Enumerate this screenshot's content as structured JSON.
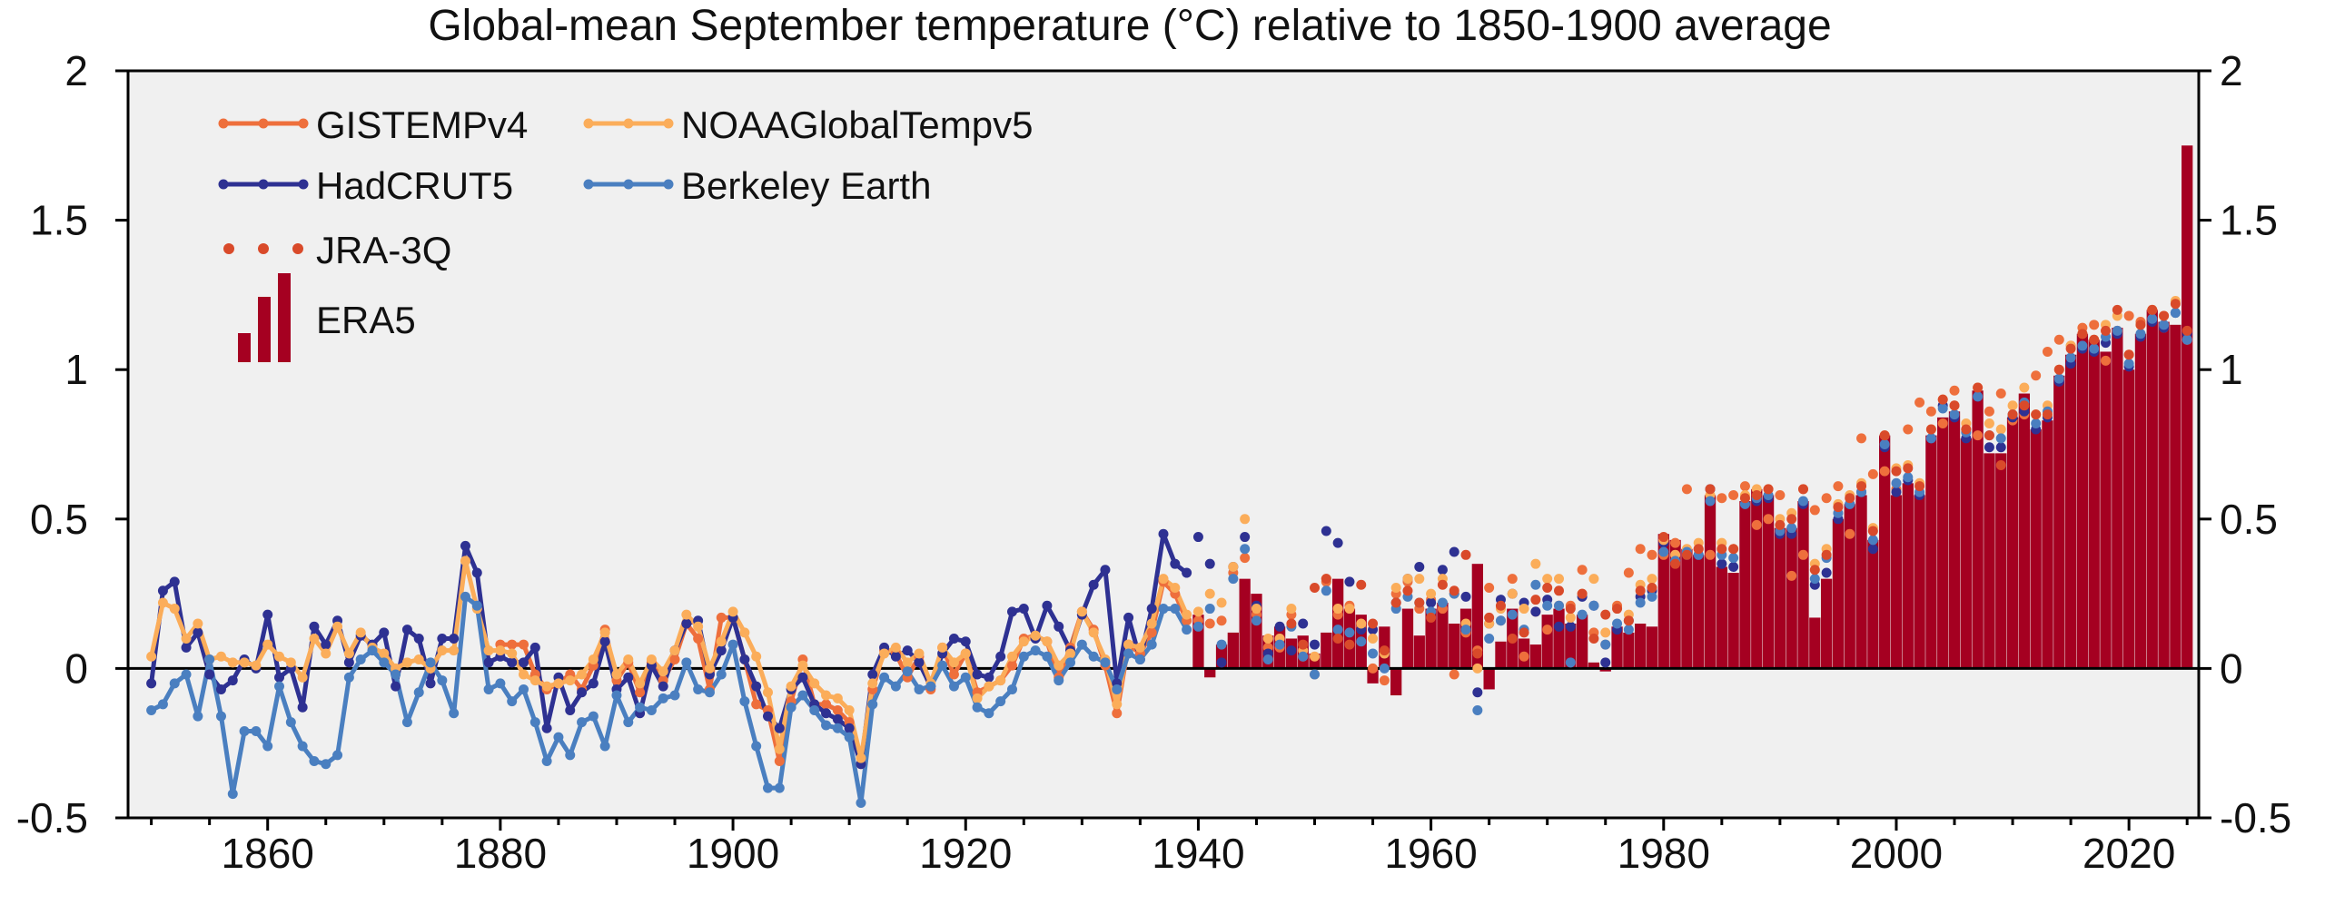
{
  "chart_data": {
    "type": "line",
    "title": "Global-mean September temperature (°C) relative to 1850-1900 average",
    "xlabel": "",
    "ylabel": "",
    "xlim": [
      1848,
      2026
    ],
    "ylim": [
      -0.5,
      2
    ],
    "x_ticks": [
      1860,
      1880,
      1900,
      1920,
      1940,
      1960,
      1980,
      2000,
      2020
    ],
    "y_ticks": [
      -0.5,
      0,
      0.5,
      1,
      1.5,
      2
    ],
    "y_tick_labels": [
      "-0.5",
      "0",
      "0.5",
      "1",
      "1.5",
      "2"
    ],
    "grid": false,
    "legend_position": "top-left",
    "background": "#f0f0f0",
    "series": [
      {
        "name": "GISTEMPv4",
        "style": "line",
        "color": "#ee6f3c",
        "start_year": 1880,
        "values": [
          0.08,
          0.08,
          0.08,
          -0.02,
          -0.07,
          -0.05,
          -0.02,
          -0.07,
          0.01,
          0.13,
          -0.04,
          0.02,
          -0.08,
          0.02,
          -0.04,
          0.03,
          0.15,
          0.1,
          -0.07,
          0.17,
          0.17,
          0.03,
          -0.12,
          -0.14,
          -0.31,
          -0.11,
          0.03,
          -0.12,
          -0.12,
          -0.14,
          -0.18,
          -0.32,
          -0.07,
          0.06,
          0.05,
          -0.03,
          0.04,
          -0.07,
          0.07,
          -0.02,
          0.05,
          -0.08,
          -0.06,
          -0.04,
          0.01,
          0.1,
          0.11,
          0.09,
          -0.03,
          0.07,
          0.19,
          0.13,
          0.01,
          -0.15,
          0.08,
          0.05,
          0.12,
          0.29,
          0.25,
          0.16,
          0.16,
          0.15,
          0.16,
          0.32,
          0.37,
          0.18,
          0.07,
          0.07,
          0.18,
          0.04,
          -0.02,
          0.29,
          0.18,
          0.21,
          0.14,
          0.0,
          -0.04,
          0.25,
          0.29,
          0.2,
          0.23,
          0.2,
          -0.02,
          0.12,
          0.06,
          0.27,
          0.16,
          0.3,
          0.04,
          0.19,
          0.13,
          0.21,
          0.21,
          0.33,
          0.12,
          0.08,
          0.21,
          0.32,
          0.4,
          0.38,
          0.38,
          0.42,
          0.6,
          0.4,
          0.38,
          0.57,
          0.58,
          0.61,
          0.48,
          0.5,
          0.58,
          0.31,
          0.38,
          0.53,
          0.57,
          0.61,
          0.45,
          0.77,
          0.65,
          0.66,
          0.6,
          0.8,
          0.89,
          0.86,
          0.82,
          0.93,
          0.8,
          0.78,
          0.86,
          0.92,
          0.83,
          0.85,
          0.98,
          1.06,
          1.1,
          1.08,
          1.14,
          1.15,
          1.03,
          1.13,
          1.18,
          1.16,
          1.2,
          1.14
        ]
      },
      {
        "name": "HadCRUT5",
        "style": "line",
        "color": "#2e3192",
        "start_year": 1850,
        "values": [
          -0.05,
          0.26,
          0.29,
          0.07,
          0.12,
          -0.02,
          -0.07,
          -0.04,
          0.03,
          0.0,
          0.18,
          -0.03,
          0.0,
          -0.13,
          0.14,
          0.08,
          0.16,
          0.02,
          0.11,
          0.08,
          0.12,
          -0.06,
          0.13,
          0.1,
          -0.05,
          0.1,
          0.1,
          0.41,
          0.32,
          0.02,
          0.04,
          0.02,
          0.02,
          0.07,
          -0.2,
          -0.03,
          -0.14,
          -0.08,
          -0.05,
          0.09,
          -0.07,
          -0.03,
          -0.15,
          0.01,
          -0.06,
          0.06,
          0.15,
          0.16,
          -0.02,
          0.06,
          0.17,
          0.03,
          -0.06,
          -0.16,
          -0.2,
          -0.07,
          -0.03,
          -0.12,
          -0.15,
          -0.17,
          -0.2,
          -0.32,
          -0.02,
          0.07,
          0.04,
          0.06,
          0.02,
          -0.06,
          0.05,
          0.1,
          0.09,
          -0.02,
          -0.03,
          0.04,
          0.19,
          0.2,
          0.1,
          0.21,
          0.14,
          0.06,
          0.18,
          0.28,
          0.33,
          -0.05,
          0.17,
          0.03,
          0.2,
          0.45,
          0.35,
          0.32,
          0.44,
          0.35,
          0.02,
          0.34,
          0.44,
          0.21,
          0.05,
          0.14,
          0.06,
          0.15,
          0.08,
          0.46,
          0.42,
          0.29,
          0.13,
          0.13,
          0.05,
          0.22,
          0.3,
          0.34,
          0.22,
          0.33,
          0.39,
          0.24,
          -0.08,
          0.15,
          0.23,
          0.25,
          0.22,
          0.19,
          0.23,
          0.14,
          0.14,
          0.24,
          0.21,
          0.02,
          0.13,
          0.16,
          0.24,
          0.26,
          0.42,
          0.36,
          0.38,
          0.38,
          0.6,
          0.35,
          0.34,
          0.55,
          0.56,
          0.57,
          0.45,
          0.45,
          0.55,
          0.28,
          0.32,
          0.5,
          0.55,
          0.59,
          0.4,
          0.74,
          0.59,
          0.63,
          0.58,
          0.77,
          0.88,
          0.84,
          0.77,
          0.91,
          0.74,
          0.74,
          0.84,
          0.86,
          0.8,
          0.84,
          0.96,
          1.02,
          1.07,
          1.06,
          1.09,
          1.12,
          1.01,
          1.11,
          1.16,
          1.14,
          1.19,
          1.12
        ]
      },
      {
        "name": "NOAAGlobalTempv5",
        "style": "line",
        "color": "#fbad5a",
        "start_year": 1850,
        "values": [
          0.04,
          0.22,
          0.2,
          0.1,
          0.15,
          0.03,
          0.04,
          0.02,
          0.02,
          0.01,
          0.08,
          0.04,
          0.02,
          -0.03,
          0.1,
          0.05,
          0.14,
          0.05,
          0.12,
          0.07,
          0.05,
          0.0,
          0.02,
          0.03,
          0.0,
          0.06,
          0.06,
          0.36,
          0.2,
          0.06,
          0.06,
          0.05,
          -0.02,
          -0.04,
          -0.06,
          -0.05,
          -0.04,
          -0.02,
          0.03,
          0.12,
          -0.02,
          0.03,
          -0.05,
          0.03,
          -0.01,
          0.06,
          0.18,
          0.14,
          0.0,
          0.09,
          0.19,
          0.12,
          0.04,
          -0.08,
          -0.27,
          -0.06,
          0.01,
          -0.05,
          -0.09,
          -0.1,
          -0.14,
          -0.3,
          -0.05,
          0.05,
          0.07,
          0.02,
          0.05,
          -0.05,
          0.07,
          0.02,
          0.05,
          -0.1,
          -0.06,
          -0.04,
          0.04,
          0.09,
          0.11,
          0.09,
          0.01,
          0.05,
          0.19,
          0.12,
          0.03,
          -0.12,
          0.08,
          0.07,
          0.15,
          0.3,
          0.27,
          0.18,
          0.19,
          0.25,
          0.22,
          0.34,
          0.5,
          0.2,
          0.1,
          0.1,
          0.2,
          0.06,
          0.04,
          0.3,
          0.2,
          0.2,
          0.15,
          0.1,
          0.05,
          0.27,
          0.3,
          0.3,
          0.25,
          0.3,
          0.25,
          0.15,
          0.0,
          0.15,
          0.2,
          0.25,
          0.2,
          0.35,
          0.3,
          0.3,
          0.17,
          0.25,
          0.3,
          0.12,
          0.2,
          0.18,
          0.28,
          0.3,
          0.43,
          0.38,
          0.4,
          0.42,
          0.58,
          0.42,
          0.4,
          0.58,
          0.6,
          0.6,
          0.5,
          0.52,
          0.6,
          0.35,
          0.4,
          0.55,
          0.58,
          0.62,
          0.47,
          0.78,
          0.67,
          0.68,
          0.62,
          0.8,
          0.9,
          0.88,
          0.82,
          0.94,
          0.82,
          0.8,
          0.88,
          0.94,
          0.85,
          0.88,
          1.0,
          1.08,
          1.12,
          1.1,
          1.15,
          1.18,
          1.05,
          1.15,
          1.2,
          1.18,
          1.23,
          1.1
        ]
      },
      {
        "name": "Berkeley Earth",
        "style": "line",
        "color": "#4a7fc0",
        "start_year": 1850,
        "values": [
          -0.14,
          -0.12,
          -0.05,
          -0.02,
          -0.16,
          0.03,
          -0.16,
          -0.42,
          -0.21,
          -0.21,
          -0.26,
          -0.06,
          -0.18,
          -0.26,
          -0.31,
          -0.32,
          -0.29,
          -0.03,
          0.03,
          0.06,
          0.02,
          -0.02,
          -0.18,
          -0.08,
          0.02,
          -0.04,
          -0.15,
          0.24,
          0.21,
          -0.07,
          -0.05,
          -0.11,
          -0.07,
          -0.18,
          -0.31,
          -0.23,
          -0.29,
          -0.18,
          -0.16,
          -0.26,
          -0.09,
          -0.18,
          -0.13,
          -0.14,
          -0.1,
          -0.09,
          0.02,
          -0.07,
          -0.08,
          -0.02,
          0.08,
          -0.11,
          -0.26,
          -0.4,
          -0.4,
          -0.13,
          -0.09,
          -0.14,
          -0.19,
          -0.2,
          -0.23,
          -0.45,
          -0.12,
          -0.03,
          -0.06,
          -0.01,
          -0.07,
          -0.06,
          0.01,
          -0.06,
          -0.03,
          -0.13,
          -0.15,
          -0.11,
          -0.07,
          0.04,
          0.06,
          0.04,
          -0.04,
          0.02,
          0.08,
          0.04,
          0.02,
          -0.07,
          0.05,
          0.03,
          0.08,
          0.2,
          0.2,
          0.13,
          0.14,
          0.2,
          0.08,
          0.3,
          0.4,
          0.16,
          0.03,
          0.08,
          0.14,
          0.04,
          -0.02,
          0.26,
          0.13,
          0.12,
          0.09,
          0.05,
          0.0,
          0.2,
          0.24,
          0.22,
          0.19,
          0.22,
          0.25,
          0.13,
          -0.14,
          0.1,
          0.16,
          0.18,
          0.13,
          0.28,
          0.21,
          0.21,
          0.02,
          0.18,
          0.21,
          0.08,
          0.15,
          0.13,
          0.22,
          0.24,
          0.39,
          0.36,
          0.39,
          0.38,
          0.56,
          0.38,
          0.37,
          0.55,
          0.57,
          0.58,
          0.46,
          0.47,
          0.56,
          0.3,
          0.37,
          0.52,
          0.55,
          0.59,
          0.43,
          0.75,
          0.62,
          0.64,
          0.59,
          0.77,
          0.87,
          0.85,
          0.79,
          0.91,
          0.78,
          0.77,
          0.85,
          0.89,
          0.82,
          0.86,
          0.97,
          1.04,
          1.08,
          1.07,
          1.11,
          1.13,
          1.02,
          1.12,
          1.17,
          1.15,
          1.19,
          1.1
        ]
      },
      {
        "name": "JRA-3Q",
        "style": "dots",
        "color": "#d94a2a",
        "start_year": 1948,
        "values": [
          0.15,
          0.08,
          0.27,
          0.3,
          0.1,
          0.08,
          0.28,
          0.15,
          0.06,
          0.22,
          0.26,
          0.22,
          0.17,
          0.28,
          0.26,
          0.38,
          0.05,
          0.17,
          0.21,
          0.1,
          0.12,
          0.23,
          0.27,
          0.26,
          0.2,
          0.25,
          0.1,
          0.18,
          0.2,
          0.16,
          0.26,
          0.27,
          0.44,
          0.35,
          0.38,
          0.4,
          0.6,
          0.4,
          0.4,
          0.57,
          0.58,
          0.6,
          0.48,
          0.5,
          0.6,
          0.33,
          0.38,
          0.54,
          0.57,
          0.61,
          0.46,
          0.78,
          0.66,
          0.67,
          0.61,
          0.8,
          0.9,
          0.88,
          0.8,
          0.94,
          0.78,
          0.68,
          0.85,
          0.88,
          0.85,
          0.85,
          1.0,
          1.07,
          1.12,
          1.1,
          1.13,
          1.2,
          1.05,
          1.15,
          1.2,
          1.18,
          1.22,
          1.13
        ]
      },
      {
        "name": "ERA5",
        "style": "bars",
        "color": "#a50021",
        "start_year": 1940,
        "values": [
          0.18,
          -0.03,
          0.08,
          0.12,
          0.3,
          0.25,
          0.11,
          0.14,
          0.1,
          0.11,
          0.05,
          0.12,
          0.3,
          0.2,
          0.18,
          -0.05,
          0.14,
          -0.09,
          0.2,
          0.11,
          0.2,
          0.22,
          0.15,
          0.2,
          0.35,
          -0.07,
          0.09,
          0.2,
          0.1,
          0.08,
          0.18,
          0.2,
          0.15,
          0.18,
          0.02,
          -0.01,
          0.14,
          0.12,
          0.15,
          0.14,
          0.45,
          0.43,
          0.4,
          0.38,
          0.58,
          0.34,
          0.32,
          0.56,
          0.6,
          0.58,
          0.47,
          0.47,
          0.56,
          0.17,
          0.3,
          0.5,
          0.55,
          0.58,
          0.43,
          0.78,
          0.58,
          0.62,
          0.58,
          0.78,
          0.84,
          0.86,
          0.77,
          0.93,
          0.72,
          0.72,
          0.84,
          0.92,
          0.8,
          0.83,
          0.98,
          1.05,
          1.12,
          1.1,
          1.06,
          1.14,
          1.0,
          1.12,
          1.2,
          1.16,
          1.15,
          1.75
        ]
      }
    ]
  }
}
